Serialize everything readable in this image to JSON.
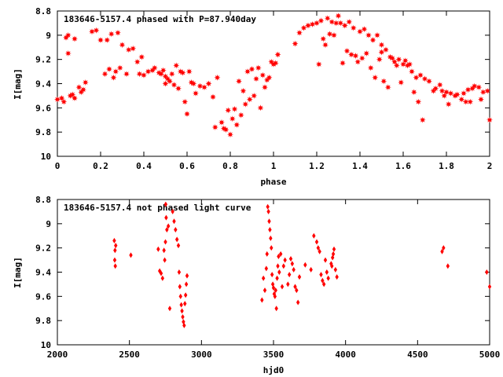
{
  "chart_data": [
    {
      "type": "scatter",
      "title": "183646-5157.4 phased with P=87.940day",
      "xlabel": "phase",
      "ylabel": "I[mag]",
      "xlim": [
        0,
        2
      ],
      "ylim": [
        8.8,
        10
      ],
      "y_inverted": true,
      "xticks": [
        "0",
        "0.2",
        "0.4",
        "0.6",
        "0.8",
        "1",
        "1.2",
        "1.4",
        "1.6",
        "1.8",
        "2"
      ],
      "yticks": [
        "8.8",
        "9",
        "9.2",
        "9.4",
        "9.6",
        "9.8",
        "10"
      ],
      "marker": "filled-star",
      "color": "#ff0000",
      "grid": false,
      "series": [
        {
          "x": [
            0.0,
            0.02,
            0.04,
            0.05,
            0.06,
            0.07,
            0.08,
            0.1,
            0.11,
            0.13,
            0.18,
            0.2,
            0.22,
            0.24,
            0.25,
            0.26,
            0.27,
            0.28,
            0.3,
            0.32,
            0.35,
            0.37,
            0.38,
            0.4,
            0.42,
            0.45,
            0.47,
            0.49,
            0.5,
            0.5,
            0.51,
            0.53,
            0.55,
            0.56,
            0.58,
            0.6,
            0.61,
            0.63,
            0.66,
            0.68,
            0.7,
            0.73,
            0.74,
            0.76,
            0.78,
            0.8,
            0.82,
            0.84,
            0.86,
            0.87,
            0.88,
            0.9,
            0.92,
            0.93,
            0.95,
            0.97,
            0.99,
            1.0,
            1.02,
            1.1,
            1.12,
            1.14,
            1.16,
            1.18,
            1.2,
            1.22,
            1.25,
            1.27,
            1.29,
            1.3,
            1.31,
            1.33,
            1.35,
            1.37,
            1.4,
            1.42,
            1.44,
            1.46,
            1.48,
            1.5,
            1.5,
            1.52,
            1.54,
            1.55,
            1.56,
            1.58,
            1.6,
            1.62,
            1.64,
            1.66,
            1.68,
            1.7,
            1.72,
            1.75,
            1.78,
            1.8,
            1.82,
            1.85,
            1.88,
            1.9,
            1.92,
            1.95,
            1.97,
            2.0,
            0.03,
            0.05,
            0.08,
            0.12,
            0.16,
            0.23,
            0.29,
            0.33,
            0.39,
            0.44,
            0.48,
            0.52,
            0.54,
            0.57,
            0.59,
            0.62,
            0.64,
            0.72,
            0.77,
            0.79,
            0.81,
            0.83,
            0.85,
            0.89,
            0.91,
            0.94,
            0.96,
            0.98,
            1.01,
            1.21,
            1.23,
            1.24,
            1.26,
            1.28,
            1.32,
            1.34,
            1.36,
            1.38,
            1.39,
            1.41,
            1.43,
            1.45,
            1.47,
            1.49,
            1.51,
            1.53,
            1.57,
            1.59,
            1.61,
            1.63,
            1.65,
            1.67,
            1.69,
            1.74,
            1.77,
            1.79,
            1.81,
            1.84,
            1.87,
            1.89,
            1.91,
            1.93,
            1.96,
            1.99
          ],
          "y": [
            9.53,
            9.52,
            9.02,
            9.15,
            9.5,
            9.49,
            9.03,
            9.43,
            9.47,
            9.39,
            8.96,
            9.04,
            9.32,
            9.28,
            8.99,
            9.35,
            9.3,
            8.98,
            9.08,
            9.32,
            9.11,
            9.22,
            9.32,
            9.33,
            9.3,
            9.27,
            9.31,
            9.29,
            9.34,
            9.4,
            9.36,
            9.32,
            9.25,
            9.44,
            9.31,
            9.65,
            9.3,
            9.4,
            9.42,
            9.43,
            9.4,
            9.76,
            9.35,
            9.72,
            9.78,
            9.82,
            9.61,
            9.38,
            9.46,
            9.57,
            9.3,
            9.28,
            9.36,
            9.27,
            9.33,
            9.37,
            9.22,
            9.24,
            9.16,
            9.07,
            8.98,
            8.94,
            8.92,
            8.91,
            8.9,
            8.88,
            8.86,
            8.89,
            8.9,
            8.84,
            8.9,
            8.92,
            8.89,
            8.94,
            8.97,
            8.95,
            9.0,
            9.04,
            9.0,
            9.08,
            9.14,
            9.12,
            9.18,
            9.19,
            9.22,
            9.2,
            9.24,
            9.25,
            9.3,
            9.35,
            9.33,
            9.36,
            9.38,
            9.44,
            9.46,
            9.47,
            9.48,
            9.49,
            9.48,
            9.45,
            9.44,
            9.43,
            9.47,
            9.7,
            9.55,
            9.0,
            9.52,
            9.45,
            8.97,
            9.04,
            9.27,
            9.12,
            9.18,
            9.29,
            9.32,
            9.38,
            9.41,
            9.3,
            9.55,
            9.39,
            9.48,
            9.51,
            9.77,
            9.62,
            9.69,
            9.74,
            9.66,
            9.53,
            9.5,
            9.6,
            9.43,
            9.35,
            9.23,
            9.24,
            9.03,
            9.08,
            8.99,
            9.0,
            9.23,
            9.13,
            9.16,
            9.17,
            9.22,
            9.19,
            9.15,
            9.27,
            9.35,
            9.2,
            9.38,
            9.43,
            9.25,
            9.39,
            9.21,
            9.24,
            9.47,
            9.55,
            9.7,
            9.46,
            9.41,
            9.5,
            9.57,
            9.5,
            9.53,
            9.55,
            9.55,
            9.42,
            9.53,
            9.46
          ]
        }
      ]
    },
    {
      "type": "scatter",
      "title": "183646-5157.4 not phased light curve",
      "xlabel": "hjd0",
      "ylabel": "I[mag]",
      "xlim": [
        2000,
        5000
      ],
      "ylim": [
        8.8,
        10
      ],
      "y_inverted": true,
      "xticks": [
        "2000",
        "2500",
        "3000",
        "3500",
        "4000",
        "4500",
        "5000"
      ],
      "yticks": [
        "8.8",
        "9",
        "9.2",
        "9.4",
        "9.6",
        "9.8",
        "10"
      ],
      "marker": "filled-diamond",
      "color": "#ff0000",
      "grid": false,
      "series": [
        {
          "x": [
            2395,
            2400,
            2398,
            2402,
            2405,
            2510,
            2700,
            2710,
            2720,
            2730,
            2740,
            2745,
            2750,
            2752,
            2755,
            2760,
            2770,
            2780,
            2800,
            2810,
            2820,
            2830,
            2840,
            2845,
            2850,
            2855,
            2860,
            2865,
            2870,
            2875,
            2880,
            2885,
            2890,
            2895,
            2900,
            3420,
            3430,
            3440,
            3450,
            3455,
            3460,
            3465,
            3470,
            3475,
            3480,
            3485,
            3490,
            3495,
            3500,
            3505,
            3510,
            3515,
            3520,
            3525,
            3530,
            3535,
            3540,
            3550,
            3560,
            3570,
            3580,
            3600,
            3610,
            3620,
            3630,
            3640,
            3650,
            3660,
            3670,
            3680,
            3720,
            3760,
            3780,
            3800,
            3810,
            3820,
            3830,
            3840,
            3850,
            3860,
            3870,
            3880,
            3900,
            3905,
            3910,
            3915,
            3920,
            3930,
            3940,
            4670,
            4680,
            4710,
            4980,
            5000
          ],
          "y": [
            9.14,
            9.22,
            9.3,
            9.35,
            9.18,
            9.26,
            9.21,
            9.39,
            9.41,
            9.45,
            9.22,
            9.3,
            9.15,
            8.84,
            8.95,
            9.05,
            9.02,
            9.7,
            8.9,
            8.98,
            9.05,
            9.13,
            9.18,
            9.4,
            9.52,
            9.6,
            9.67,
            9.72,
            9.77,
            9.81,
            9.84,
            9.66,
            9.59,
            9.5,
            9.43,
            9.63,
            9.45,
            9.55,
            9.37,
            9.25,
            8.86,
            8.9,
            8.98,
            9.05,
            9.12,
            9.2,
            9.42,
            9.5,
            9.53,
            9.58,
            9.6,
            9.55,
            9.7,
            9.45,
            9.35,
            9.27,
            9.4,
            9.25,
            9.52,
            9.35,
            9.3,
            9.5,
            9.42,
            9.29,
            9.33,
            9.38,
            9.52,
            9.55,
            9.65,
            9.44,
            9.34,
            9.38,
            9.1,
            9.15,
            9.2,
            9.23,
            9.42,
            9.47,
            9.5,
            9.3,
            9.4,
            9.45,
            9.33,
            9.35,
            9.28,
            9.25,
            9.21,
            9.38,
            9.44,
            9.23,
            9.2,
            9.35,
            9.4,
            9.52
          ]
        }
      ]
    }
  ]
}
